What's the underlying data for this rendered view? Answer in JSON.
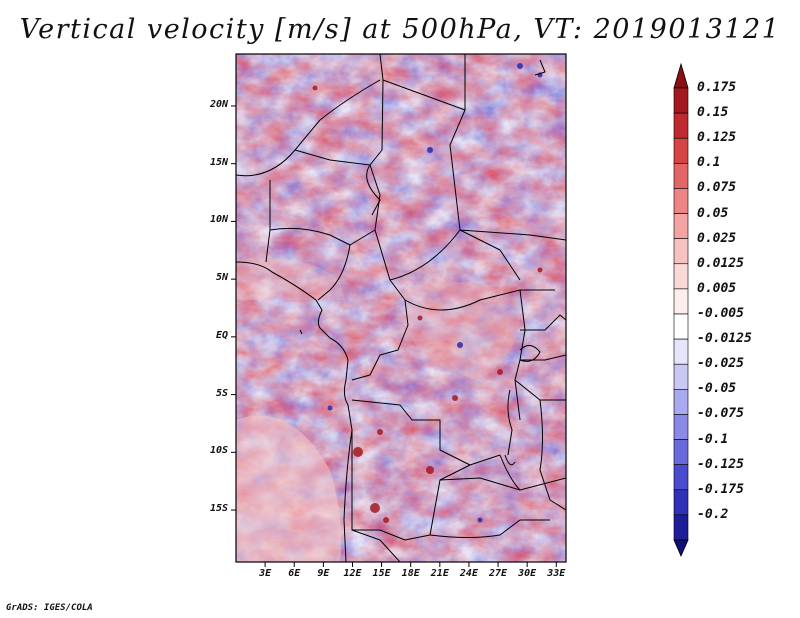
{
  "title": "Vertical velocity [m/s] at 500hPa, VT: 2019013121",
  "credit": "GrADS: IGES/COLA",
  "map": {
    "lat_range": [
      -19.5,
      24.5
    ],
    "lon_range": [
      0,
      34
    ],
    "lat_ticks": [
      {
        "value": 20,
        "label": "20N"
      },
      {
        "value": 15,
        "label": "15N"
      },
      {
        "value": 10,
        "label": "10N"
      },
      {
        "value": 5,
        "label": "5N"
      },
      {
        "value": 0,
        "label": "EQ"
      },
      {
        "value": -5,
        "label": "5S"
      },
      {
        "value": -10,
        "label": "10S"
      },
      {
        "value": -15,
        "label": "15S"
      }
    ],
    "lon_ticks": [
      {
        "value": 3,
        "label": "3E"
      },
      {
        "value": 6,
        "label": "6E"
      },
      {
        "value": 9,
        "label": "9E"
      },
      {
        "value": 12,
        "label": "12E"
      },
      {
        "value": 15,
        "label": "15E"
      },
      {
        "value": 18,
        "label": "18E"
      },
      {
        "value": 21,
        "label": "21E"
      },
      {
        "value": 24,
        "label": "24E"
      },
      {
        "value": 27,
        "label": "27E"
      },
      {
        "value": 30,
        "label": "30E"
      },
      {
        "value": 33,
        "label": "33E"
      }
    ],
    "field_description": "shaded vertical velocity field with country boundaries"
  },
  "colorbar": {
    "levels": [
      {
        "label": "0.175",
        "color": "#a4191f"
      },
      {
        "label": "0.15",
        "color": "#bf2a2e"
      },
      {
        "label": "0.125",
        "color": "#d64545"
      },
      {
        "label": "0.1",
        "color": "#e46565"
      },
      {
        "label": "0.075",
        "color": "#ee8585"
      },
      {
        "label": "0.05",
        "color": "#f4a3a3"
      },
      {
        "label": "0.025",
        "color": "#f8c1c1"
      },
      {
        "label": "0.0125",
        "color": "#fbd9d9"
      },
      {
        "label": "0.005",
        "color": "#fdeeee"
      },
      {
        "label": "-0.005",
        "color": "#ffffff"
      },
      {
        "label": "-0.0125",
        "color": "#e6e6fb"
      },
      {
        "label": "-0.025",
        "color": "#c8c8f5"
      },
      {
        "label": "-0.05",
        "color": "#a9a9ef"
      },
      {
        "label": "-0.075",
        "color": "#8a8ae6"
      },
      {
        "label": "-0.1",
        "color": "#6a6adc"
      },
      {
        "label": "-0.125",
        "color": "#4b4bcd"
      },
      {
        "label": "-0.175",
        "color": "#3131b7"
      },
      {
        "label": "-0.2",
        "color": "#1e1e99"
      }
    ],
    "top_arrow_color": "#8b0e14",
    "bottom_arrow_color": "#0f0f7a"
  }
}
